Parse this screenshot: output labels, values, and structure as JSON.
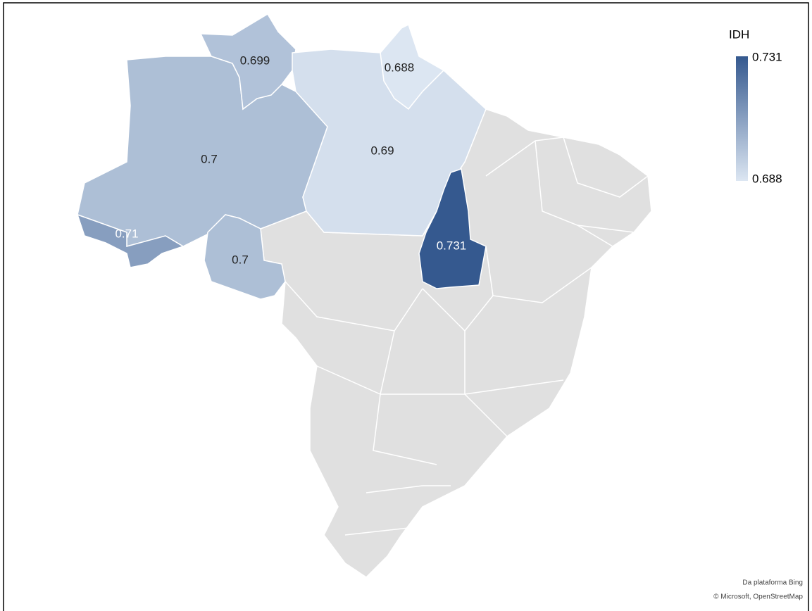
{
  "map": {
    "legend": {
      "title": "IDH",
      "max": 0.731,
      "min": 0.688,
      "colors": [
        "#dce6f2",
        "#35598f"
      ]
    },
    "regions": [
      {
        "value": 0.7
      },
      {
        "value": 0.699
      },
      {
        "value": 0.688
      },
      {
        "value": 0.69
      },
      {
        "value": 0.71
      },
      {
        "value": 0.7
      },
      {
        "value": 0.731
      }
    ],
    "attribution": [
      "Da plataforma Bing",
      "© Microsoft, OpenStreetMap"
    ]
  }
}
